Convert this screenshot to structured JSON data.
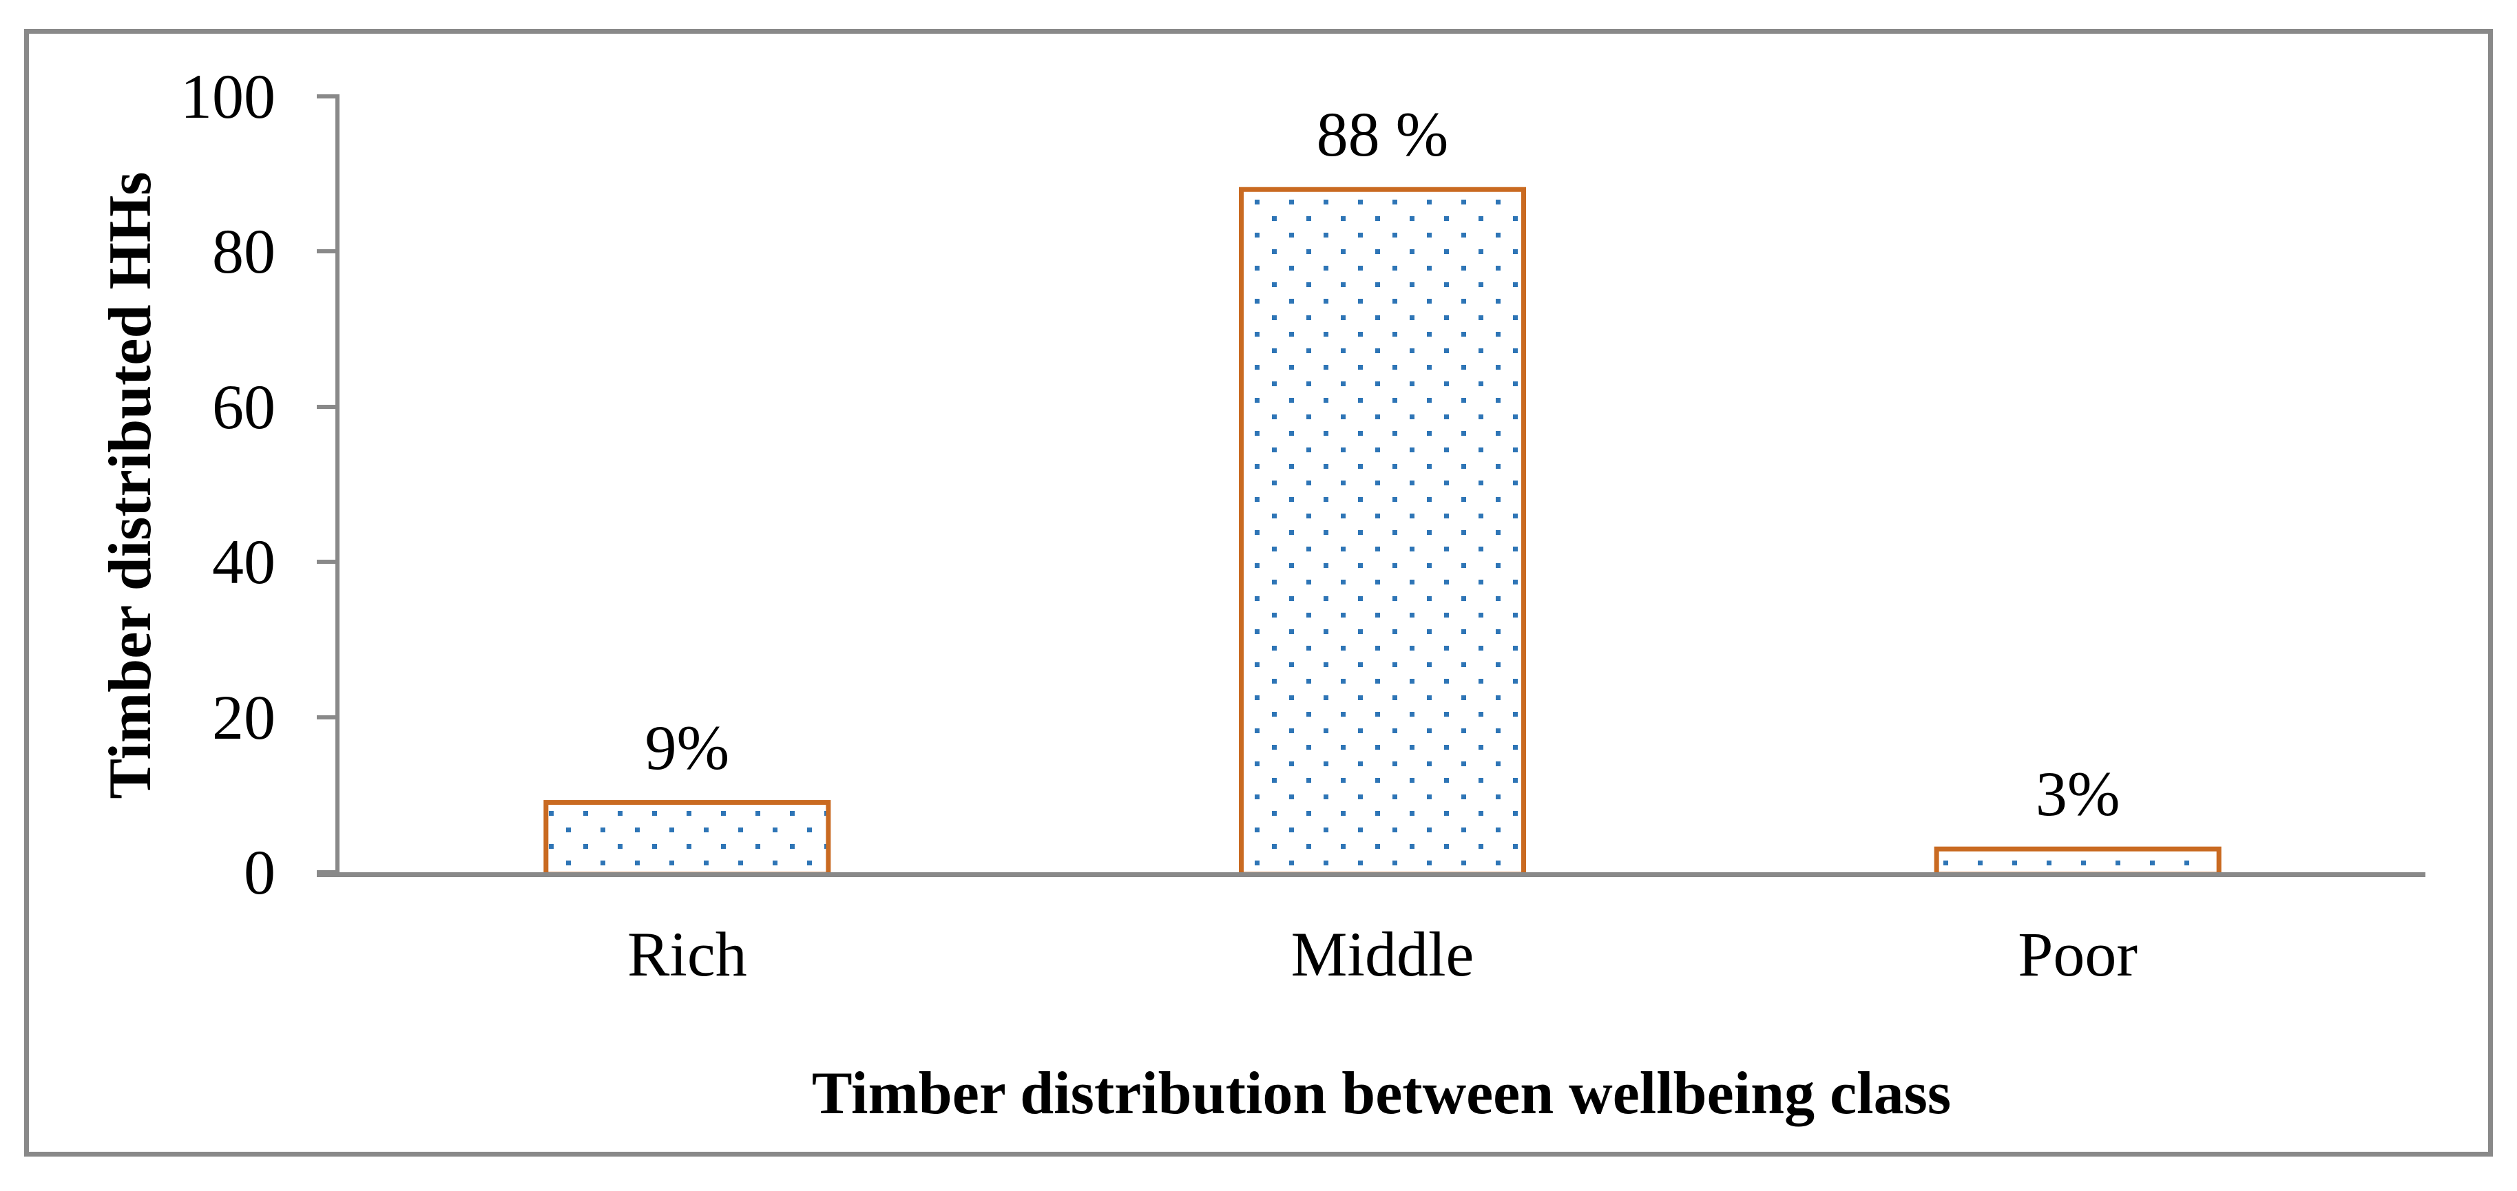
{
  "figure": {
    "background": "#FFFFFF",
    "frame_color": "#898989"
  },
  "chart_data": {
    "type": "bar",
    "title": "",
    "xlabel": "Timber distribution between wellbeing class",
    "ylabel": "Timber distributed HHs",
    "categories": [
      "Rich",
      "Middle",
      "Poor"
    ],
    "values": [
      9,
      88,
      3
    ],
    "data_labels": [
      "9%",
      "88 %",
      "3%"
    ],
    "ylim": [
      0,
      100
    ],
    "y_ticks": [
      0,
      20,
      40,
      60,
      80,
      100
    ],
    "grid": false,
    "legend": false,
    "styles": {
      "bar_border_color": "#C96A21",
      "bar_fill": "#FFFFFF",
      "dot_color": "#2E75B6",
      "axis_color": "#898989",
      "text_color": "#000000",
      "fill_pattern": "offset-square-dots"
    }
  }
}
